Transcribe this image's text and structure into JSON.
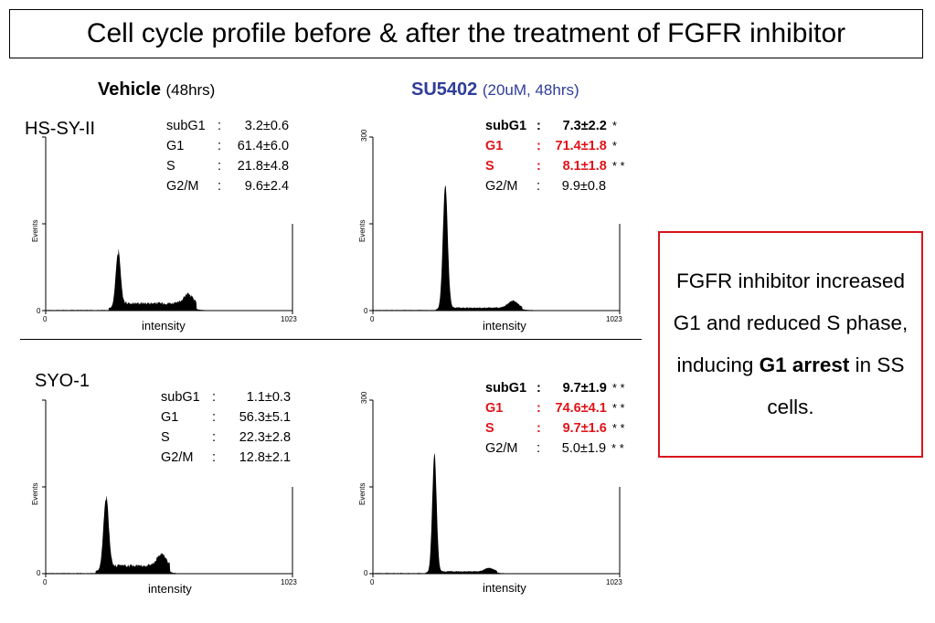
{
  "title": "Cell cycle profile before & after the treatment of FGFR inhibitor",
  "columns": [
    {
      "name": "Vehicle",
      "detail": "(48hrs)"
    },
    {
      "name": "SU5402",
      "detail": "(20uM, 48hrs)"
    }
  ],
  "rows": [
    "HS-SY-II",
    "SYO-1"
  ],
  "note": {
    "before": "FGFR inhibitor increased G1 and reduced S phase, inducing ",
    "emphasis": "G1 arrest",
    "after": " in SS cells."
  },
  "colors": {
    "treatment_header": "#2e3d98",
    "significant": "#e0141a",
    "note_border": "#d8141b"
  },
  "chart_data": [
    {
      "type": "area",
      "cell_line": "HS-SY-II",
      "condition": "Vehicle",
      "xlabel": "intensity",
      "ylabel": "Events",
      "x_ticks": [
        "0",
        "1023"
      ],
      "y_ticks": [
        "0"
      ],
      "xlim": [
        0,
        1023
      ],
      "ylim": [
        0,
        300
      ],
      "histogram": {
        "g1_peak_x": 300,
        "g1_peak_y": 95,
        "g1_sigma": 10,
        "s_level": 12,
        "g2_peak_x": 590,
        "g2_peak_y": 16,
        "g2_sigma": 18,
        "end_x": 660
      },
      "stats": [
        {
          "phase": "subG1",
          "value": "3.2±0.6",
          "sig": ""
        },
        {
          "phase": "G1",
          "value": "61.4±6.0",
          "sig": ""
        },
        {
          "phase": "S",
          "value": "21.8±4.8",
          "sig": ""
        },
        {
          "phase": "G2/M",
          "value": "9.6±2.4",
          "sig": ""
        }
      ]
    },
    {
      "type": "area",
      "cell_line": "HS-SY-II",
      "condition": "SU5402",
      "xlabel": "intensity",
      "ylabel": "Events",
      "x_ticks": [
        "0",
        "1023"
      ],
      "y_ticks": [
        "0",
        "300"
      ],
      "xlim": [
        0,
        1023
      ],
      "ylim": [
        0,
        300
      ],
      "histogram": {
        "g1_peak_x": 300,
        "g1_peak_y": 215,
        "g1_sigma": 10,
        "s_level": 4,
        "g2_peak_x": 580,
        "g2_peak_y": 12,
        "g2_sigma": 20,
        "end_x": 660
      },
      "stats": [
        {
          "phase": "subG1",
          "value": "7.3±2.2",
          "sig": "*",
          "style": "bold"
        },
        {
          "phase": "G1",
          "value": "71.4±1.8",
          "sig": "*",
          "style": "red"
        },
        {
          "phase": "S",
          "value": "8.1±1.8",
          "sig": "* *",
          "style": "red"
        },
        {
          "phase": "G2/M",
          "value": "9.9±0.8",
          "sig": ""
        }
      ]
    },
    {
      "type": "area",
      "cell_line": "SYO-1",
      "condition": "Vehicle",
      "xlabel": "intensity",
      "ylabel": "Events",
      "x_ticks": [
        "0",
        "1023"
      ],
      "y_ticks": [
        "0"
      ],
      "xlim": [
        0,
        1023
      ],
      "ylim": [
        0,
        300
      ],
      "histogram": {
        "g1_peak_x": 250,
        "g1_peak_y": 125,
        "g1_sigma": 11,
        "s_level": 13,
        "g2_peak_x": 480,
        "g2_peak_y": 20,
        "g2_sigma": 18,
        "end_x": 540
      },
      "stats": [
        {
          "phase": "subG1",
          "value": "1.1±0.3",
          "sig": ""
        },
        {
          "phase": "G1",
          "value": "56.3±5.1",
          "sig": ""
        },
        {
          "phase": "S",
          "value": "22.3±2.8",
          "sig": ""
        },
        {
          "phase": "G2/M",
          "value": "12.8±2.1",
          "sig": ""
        }
      ]
    },
    {
      "type": "area",
      "cell_line": "SYO-1",
      "condition": "SU5402",
      "xlabel": "intensity",
      "ylabel": "Events",
      "x_ticks": [
        "0",
        "1023"
      ],
      "y_ticks": [
        "0",
        "300"
      ],
      "xlim": [
        0,
        1023
      ],
      "ylim": [
        0,
        300
      ],
      "histogram": {
        "g1_peak_x": 255,
        "g1_peak_y": 205,
        "g1_sigma": 9,
        "s_level": 3,
        "g2_peak_x": 480,
        "g2_peak_y": 6,
        "g2_sigma": 18,
        "end_x": 540
      },
      "stats": [
        {
          "phase": "subG1",
          "value": "9.7±1.9",
          "sig": "* *",
          "style": "bold"
        },
        {
          "phase": "G1",
          "value": "74.6±4.1",
          "sig": "* *",
          "style": "red"
        },
        {
          "phase": "S",
          "value": "9.7±1.6",
          "sig": "* *",
          "style": "red"
        },
        {
          "phase": "G2/M",
          "value": "5.0±1.9",
          "sig": "* *"
        }
      ]
    }
  ]
}
